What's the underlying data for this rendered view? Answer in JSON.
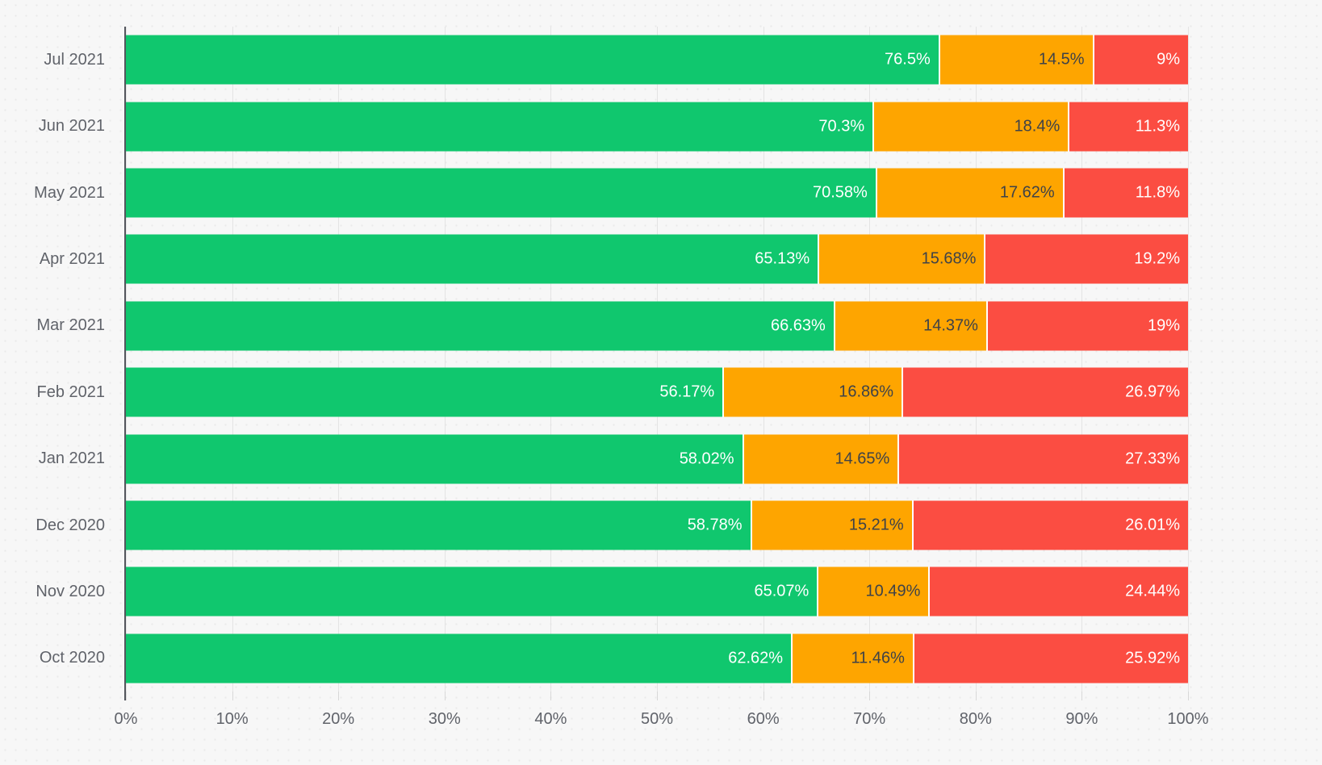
{
  "chart_data": {
    "type": "bar",
    "stacked": true,
    "orientation": "horizontal",
    "title": "",
    "xlabel": "",
    "ylabel": "",
    "xlim": [
      0,
      100
    ],
    "grid": true,
    "legend": "none",
    "categories": [
      "Jul 2021",
      "Jun 2021",
      "May 2021",
      "Apr 2021",
      "Mar 2021",
      "Feb 2021",
      "Jan 2021",
      "Dec 2020",
      "Nov 2020",
      "Oct 2020"
    ],
    "series": [
      {
        "name": "Green",
        "color": "#10c76e",
        "label_color": "#ffffff",
        "values": [
          76.5,
          70.3,
          70.58,
          65.13,
          66.63,
          56.17,
          58.02,
          58.78,
          65.07,
          62.62
        ],
        "labels": [
          "76.5%",
          "70.3%",
          "70.58%",
          "65.13%",
          "66.63%",
          "56.17%",
          "58.02%",
          "58.78%",
          "65.07%",
          "62.62%"
        ]
      },
      {
        "name": "Amber",
        "color": "#fea500",
        "label_color": "#3e4248",
        "values": [
          14.5,
          18.4,
          17.62,
          15.68,
          14.37,
          16.86,
          14.65,
          15.21,
          10.49,
          11.46
        ],
        "labels": [
          "14.5%",
          "18.4%",
          "17.62%",
          "15.68%",
          "14.37%",
          "16.86%",
          "14.65%",
          "15.21%",
          "10.49%",
          "11.46%"
        ]
      },
      {
        "name": "Red",
        "color": "#fb4d42",
        "label_color": "#ffffff",
        "values": [
          9,
          11.3,
          11.8,
          19.2,
          19,
          26.97,
          27.33,
          26.01,
          24.44,
          25.92
        ],
        "labels": [
          "9%",
          "11.3%",
          "11.8%",
          "19.2%",
          "19%",
          "26.97%",
          "27.33%",
          "26.01%",
          "24.44%",
          "25.92%"
        ]
      }
    ],
    "x_ticks": [
      "0%",
      "10%",
      "20%",
      "30%",
      "40%",
      "50%",
      "60%",
      "70%",
      "80%",
      "90%",
      "100%"
    ]
  },
  "colors": {
    "background": "#f7f7f7",
    "gridline": "#e4e4e4",
    "axis_line": "#53565d",
    "axis_text": "#60636a",
    "segment_separator": "#ffffff"
  }
}
